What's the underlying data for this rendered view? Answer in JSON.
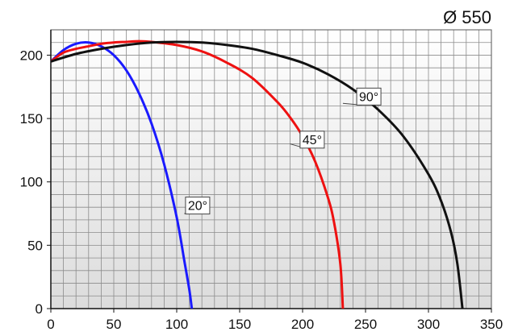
{
  "chart_data": {
    "type": "line",
    "title": "Ø 550",
    "xlabel": "",
    "ylabel": "",
    "xlim": [
      0,
      350
    ],
    "ylim": [
      0,
      220
    ],
    "xticks": [
      0,
      50,
      100,
      150,
      200,
      250,
      300,
      350
    ],
    "yticks": [
      0,
      50,
      100,
      150,
      200
    ],
    "grid": true,
    "grid_minor_x_step": 10,
    "grid_minor_y_step": 10,
    "series": [
      {
        "name": "20°",
        "color": "#1a1aff",
        "x": [
          0,
          10,
          20,
          30,
          40,
          50,
          60,
          70,
          80,
          90,
          100,
          106,
          110,
          112
        ],
        "y": [
          195,
          204,
          209,
          210,
          207,
          200,
          188,
          170,
          146,
          114,
          72,
          38,
          15,
          0
        ]
      },
      {
        "name": "45°",
        "color": "#ee1111",
        "x": [
          0,
          10,
          20,
          30,
          40,
          50,
          60,
          70,
          80,
          100,
          120,
          140,
          160,
          180,
          190,
          200,
          210,
          220,
          225,
          230,
          232
        ],
        "y": [
          195,
          202,
          205,
          207,
          209,
          210,
          210.5,
          211,
          210.5,
          208,
          203,
          194,
          182,
          163,
          151,
          136,
          116,
          88,
          68,
          35,
          0
        ]
      },
      {
        "name": "90°",
        "color": "#111111",
        "x": [
          0,
          20,
          40,
          60,
          80,
          100,
          120,
          140,
          160,
          180,
          200,
          220,
          240,
          260,
          280,
          300,
          310,
          318,
          323,
          327
        ],
        "y": [
          195,
          201,
          205,
          208,
          210,
          210.5,
          210,
          208,
          205,
          200,
          194,
          185,
          173,
          157,
          136,
          106,
          85,
          60,
          35,
          0
        ]
      }
    ],
    "annotations": [
      {
        "text": "20°",
        "series": "20°",
        "at_x": 106,
        "at_y": 75,
        "box_x": 107,
        "box_y": 88
      },
      {
        "text": "45°",
        "series": "45°",
        "at_x": 190,
        "at_y": 130,
        "box_x": 198,
        "box_y": 140
      },
      {
        "text": "90°",
        "series": "90°",
        "at_x": 232,
        "at_y": 162,
        "box_x": 243,
        "box_y": 174
      }
    ]
  }
}
